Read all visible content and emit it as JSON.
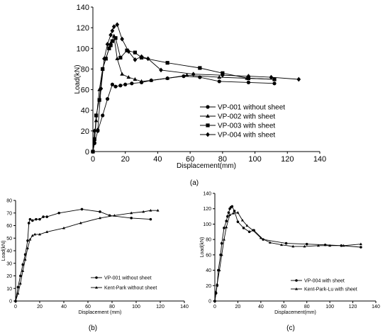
{
  "chart_data": [
    {
      "type": "line",
      "panel_label": "(a)",
      "xlabel": "Displacement(mm)",
      "ylabel": "Load(kN)",
      "xlim": [
        0,
        140
      ],
      "ylim": [
        0,
        140
      ],
      "xticks": [
        "0",
        "20",
        "40",
        "60",
        "80",
        "100",
        "120",
        "140"
      ],
      "yticks": [
        "0",
        "20",
        "40",
        "60",
        "80",
        "100",
        "120",
        "140"
      ],
      "legend_position": "bottom-right",
      "series": [
        {
          "name": "VP-001 without sheet",
          "marker": "circle",
          "x": [
            0,
            1,
            3,
            6,
            9,
            12,
            14,
            17,
            20,
            24,
            30,
            36,
            46,
            56,
            66,
            78,
            96,
            112
          ],
          "y": [
            0,
            8,
            20,
            35,
            51,
            65,
            63,
            64,
            65,
            66,
            67,
            69,
            71,
            73,
            72,
            68,
            67,
            66
          ]
        },
        {
          "name": "VP-002 with sheet",
          "marker": "triangle",
          "x": [
            0,
            1,
            2,
            4,
            6,
            8,
            10,
            11,
            13,
            15,
            18,
            22,
            26,
            30,
            36,
            46,
            58,
            78,
            95,
            112
          ],
          "y": [
            0,
            10,
            30,
            60,
            80,
            90,
            100,
            105,
            112,
            90,
            75,
            72,
            70,
            68,
            69,
            71,
            74,
            72,
            71,
            70
          ]
        },
        {
          "name": "VP-003 with sheet",
          "marker": "square",
          "x": [
            0,
            1,
            2,
            4,
            6,
            8,
            10,
            11,
            12,
            14,
            17,
            21,
            26,
            30,
            46,
            66,
            80,
            96,
            112
          ],
          "y": [
            0,
            12,
            35,
            50,
            80,
            90,
            100,
            103,
            107,
            110,
            91,
            98,
            96,
            91,
            86,
            81,
            76,
            71,
            70
          ]
        },
        {
          "name": "VP-004 with sheet",
          "marker": "diamond",
          "x": [
            0,
            1,
            3,
            5,
            7,
            9,
            11,
            12,
            13,
            15,
            18,
            22,
            26,
            30,
            34,
            42,
            62,
            80,
            96,
            110,
            127
          ],
          "y": [
            0,
            20,
            21,
            61,
            90,
            104,
            113,
            117,
            121,
            123,
            109,
            97,
            89,
            92,
            90,
            79,
            75,
            74,
            73,
            72,
            70
          ]
        }
      ]
    },
    {
      "type": "line",
      "panel_label": "(b)",
      "xlabel": "Displacement (mm)",
      "ylabel": "Load(kN)",
      "xlim": [
        0,
        140
      ],
      "ylim": [
        0,
        80
      ],
      "xticks": [
        "0",
        "20",
        "40",
        "60",
        "80",
        "100",
        "120",
        "140"
      ],
      "yticks": [
        "0",
        "10",
        "20",
        "30",
        "40",
        "50",
        "60",
        "70",
        "80"
      ],
      "legend_position": "bottom-right",
      "series": [
        {
          "name": "VP-001 without sheet",
          "marker": "circle",
          "x": [
            0,
            2,
            4,
            6,
            8,
            10,
            11,
            12,
            14,
            17,
            20,
            23,
            26,
            36,
            55,
            70,
            78,
            96,
            112
          ],
          "y": [
            0,
            11,
            20,
            29,
            37,
            48,
            62,
            65,
            64,
            65,
            65,
            67,
            67,
            70,
            73,
            71,
            68,
            66,
            65
          ]
        },
        {
          "name": "Kent-Park without sheet",
          "marker": "triangle",
          "x": [
            0,
            2,
            4,
            6,
            8,
            10,
            12,
            14,
            16,
            20,
            26,
            40,
            54,
            70,
            82,
            96,
            106,
            112,
            118
          ],
          "y": [
            0,
            6,
            14,
            24,
            33,
            42,
            49,
            52,
            53,
            53,
            55,
            58,
            62,
            66,
            68,
            70,
            71,
            72,
            72
          ]
        }
      ]
    },
    {
      "type": "line",
      "panel_label": "(c)",
      "xlabel": "Displacement(mm)",
      "ylabel": "Load(kN)",
      "xlim": [
        0,
        140
      ],
      "ylim": [
        0,
        140
      ],
      "xticks": [
        "0",
        "20",
        "40",
        "60",
        "80",
        "100",
        "120",
        "140"
      ],
      "yticks": [
        "0",
        "20",
        "40",
        "60",
        "80",
        "100",
        "120",
        "140"
      ],
      "legend_position": "bottom-right",
      "series": [
        {
          "name": "VP-004 with sheet",
          "marker": "circle",
          "x": [
            0,
            1,
            2,
            3,
            5,
            6,
            8,
            10,
            11,
            12,
            13,
            14,
            15,
            17,
            20,
            25,
            30,
            34,
            42,
            62,
            80,
            96,
            110,
            127
          ],
          "y": [
            0,
            10,
            20,
            40,
            60,
            75,
            95,
            104,
            110,
            115,
            120,
            122,
            123,
            117,
            103,
            95,
            90,
            92,
            80,
            75,
            74,
            73,
            72,
            70
          ]
        },
        {
          "name": "Kent-Park-Lu with sheet",
          "marker": "triangle",
          "x": [
            0,
            1,
            2,
            4,
            6,
            8,
            10,
            13,
            16,
            20,
            24,
            28,
            33,
            40,
            48,
            58,
            68,
            78,
            90,
            100,
            112,
            127
          ],
          "y": [
            0,
            12,
            22,
            40,
            60,
            80,
            96,
            112,
            114,
            115,
            105,
            98,
            92,
            82,
            76,
            73,
            71,
            71,
            72,
            72,
            72,
            74
          ]
        }
      ]
    }
  ]
}
